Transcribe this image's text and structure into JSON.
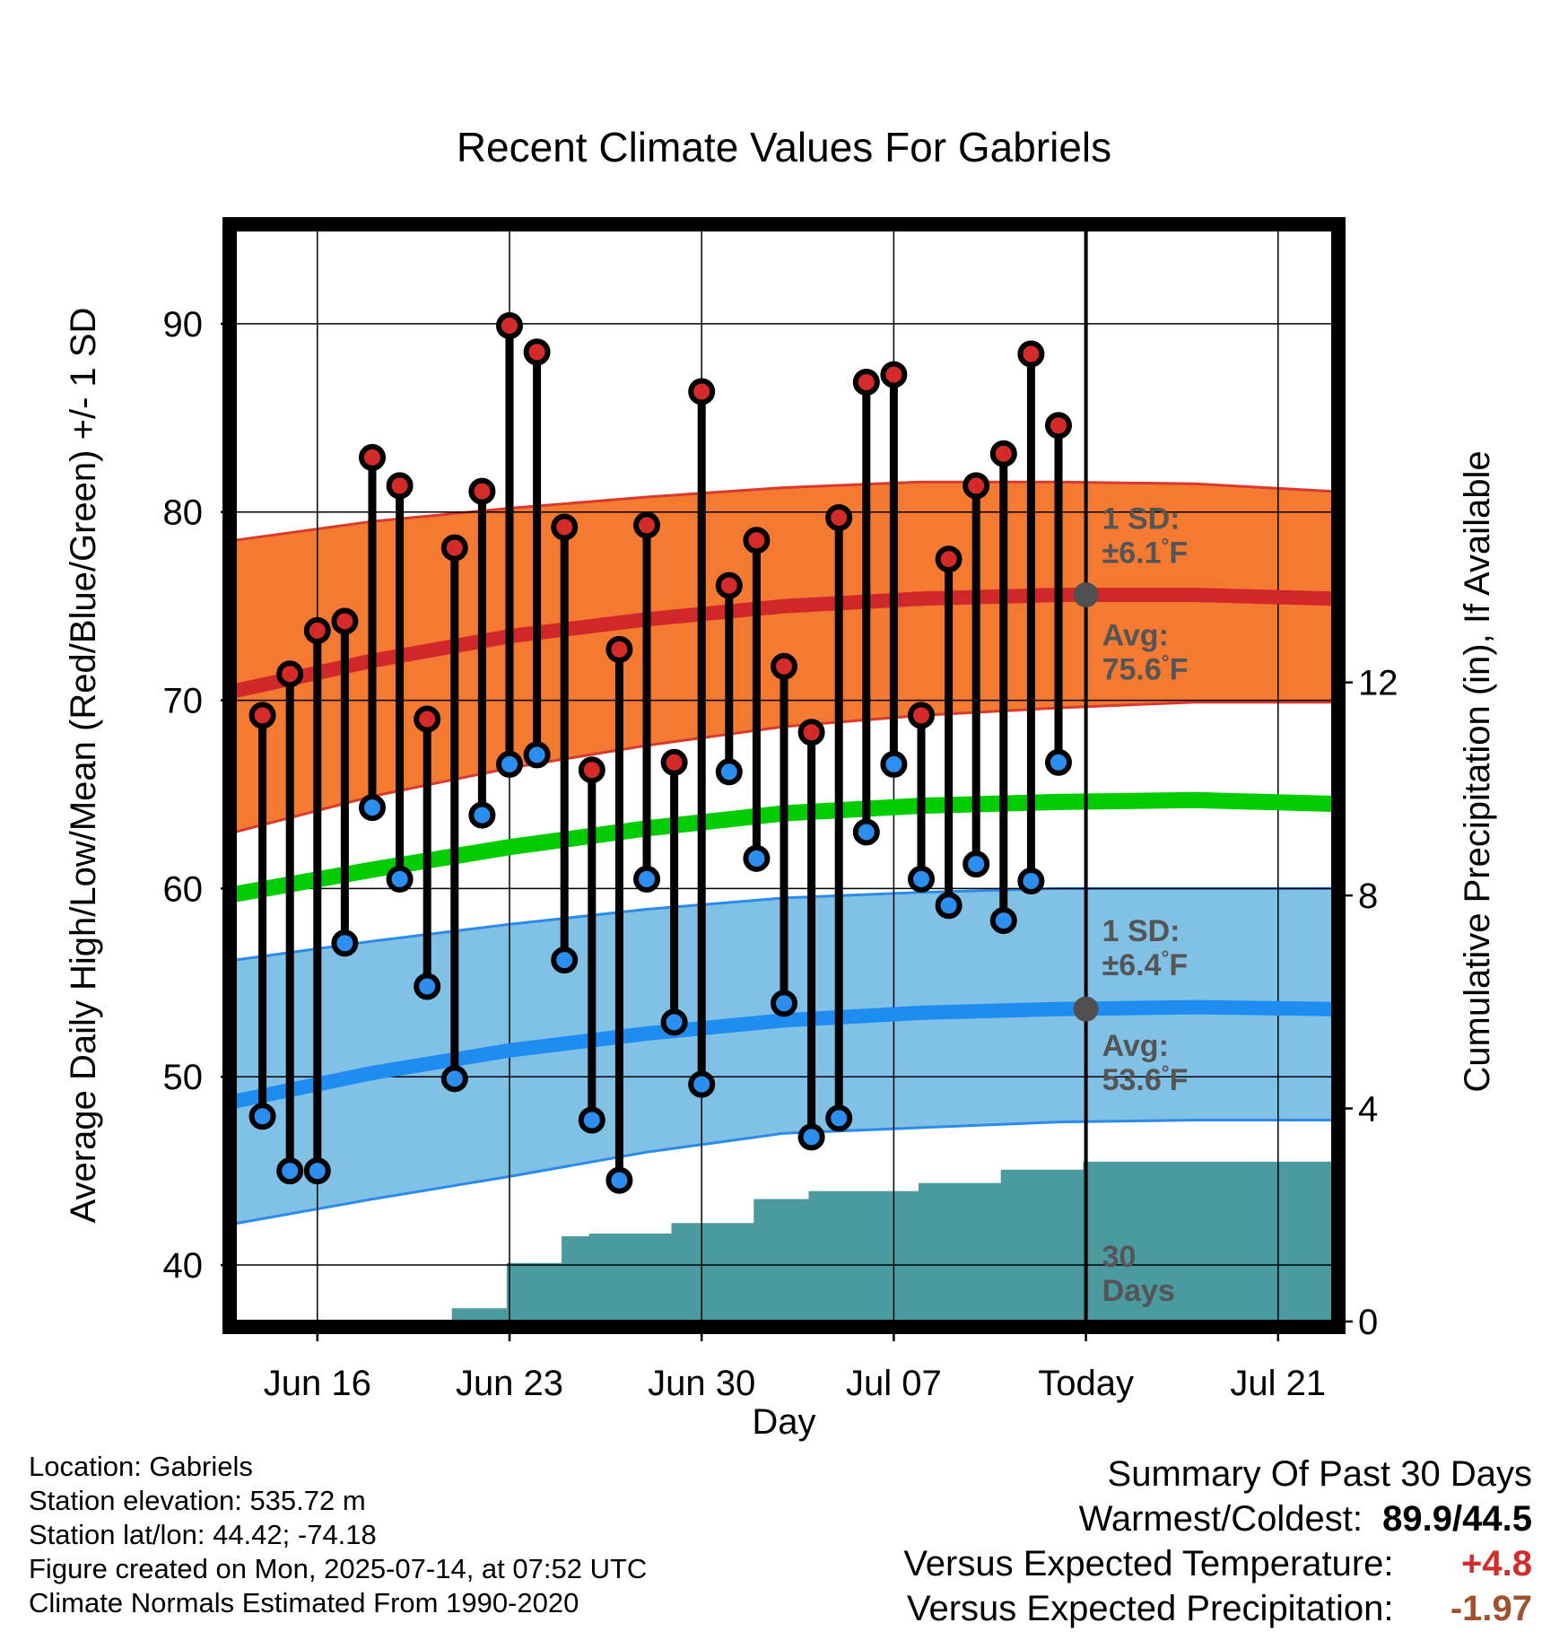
{
  "title": "Recent Climate Values For Gabriels",
  "chart_data": {
    "type": "line",
    "xlabel": "Day",
    "ylabel": "Average Daily High/Low/Mean (Red/Blue/Green) +/- 1 SD",
    "y2label": "Cumulative Precipitation (in), If Available",
    "x_ticks": [
      {
        "day": 3,
        "label": "Jun 16"
      },
      {
        "day": 10,
        "label": "Jun 23"
      },
      {
        "day": 17,
        "label": "Jun 30"
      },
      {
        "day": 24,
        "label": "Jul 07"
      },
      {
        "day": 31,
        "label": "Today"
      },
      {
        "day": 38,
        "label": "Jul 21"
      }
    ],
    "xlim": [
      0,
      40
    ],
    "ylim": [
      37,
      95
    ],
    "y_ticks": [
      40,
      50,
      60,
      70,
      80,
      90
    ],
    "y2lim": [
      0,
      20.5
    ],
    "y2_ticks": [
      0,
      4,
      8,
      12
    ],
    "today_day": 31,
    "days_x": [
      1,
      2,
      3,
      4,
      5,
      6,
      7,
      8,
      9,
      10,
      11,
      12,
      13,
      14,
      15,
      16,
      17,
      18,
      19,
      20,
      21,
      22,
      23,
      24,
      25,
      26,
      27,
      28,
      29,
      30
    ],
    "daily_high": [
      69.2,
      71.4,
      73.7,
      74.2,
      82.9,
      81.4,
      69.0,
      78.1,
      81.1,
      89.9,
      88.5,
      79.2,
      66.3,
      72.7,
      79.3,
      66.7,
      86.4,
      76.1,
      78.5,
      71.8,
      68.3,
      79.7,
      86.9,
      87.3,
      69.2,
      77.5,
      81.4,
      83.1,
      88.4,
      84.6
    ],
    "daily_low": [
      47.9,
      45.0,
      45.0,
      57.1,
      64.3,
      60.5,
      54.8,
      49.9,
      63.9,
      66.6,
      67.1,
      56.2,
      47.7,
      44.5,
      60.5,
      52.9,
      49.6,
      66.2,
      61.6,
      53.9,
      46.8,
      47.8,
      63.0,
      66.6,
      60.5,
      59.1,
      61.3,
      58.3,
      60.4,
      66.7
    ],
    "normal_x": [
      0,
      5,
      10,
      15,
      20,
      25,
      30,
      35,
      40
    ],
    "normal_high": [
      70.5,
      72.1,
      73.4,
      74.3,
      75.0,
      75.4,
      75.6,
      75.6,
      75.4
    ],
    "high_sd_upper": [
      78.5,
      79.5,
      80.2,
      80.8,
      81.3,
      81.6,
      81.6,
      81.5,
      81.1
    ],
    "high_sd_lower": [
      63.0,
      64.9,
      66.4,
      67.6,
      68.6,
      69.2,
      69.6,
      69.9,
      69.9
    ],
    "normal_mean": [
      59.7,
      61.0,
      62.2,
      63.2,
      64.0,
      64.4,
      64.6,
      64.7,
      64.5
    ],
    "normal_low": [
      48.7,
      50.2,
      51.4,
      52.3,
      53.0,
      53.4,
      53.6,
      53.7,
      53.6
    ],
    "low_sd_upper": [
      56.2,
      57.2,
      58.1,
      58.9,
      59.5,
      59.8,
      60.0,
      60.0,
      60.0
    ],
    "low_sd_lower": [
      42.2,
      43.5,
      44.7,
      46.0,
      47.0,
      47.3,
      47.6,
      47.7,
      47.7
    ],
    "precip_x": [
      5.9,
      6.9,
      7.9,
      8.9,
      9.9,
      10.9,
      11.9,
      12.9,
      13.9,
      14.9,
      15.9,
      16.9,
      17.9,
      18.9,
      19.9,
      20.9,
      21.9,
      22.9,
      23.9,
      24.9,
      25.9,
      26.9,
      27.9,
      28.9,
      29.9,
      30.9,
      40
    ],
    "precip_in": [
      0.0,
      0.0,
      0.25,
      0.25,
      1.1,
      1.1,
      1.6,
      1.65,
      1.65,
      1.65,
      1.85,
      1.85,
      1.85,
      2.3,
      2.3,
      2.45,
      2.45,
      2.45,
      2.45,
      2.6,
      2.6,
      2.6,
      2.85,
      2.85,
      2.85,
      3.0,
      3.0
    ],
    "annotations": {
      "high_sd_line1": "1 SD:",
      "high_sd_line2": "±6.1",
      "high_sd_unit": "°F",
      "high_avg_line1": "Avg:",
      "high_avg_line2": "75.6",
      "high_avg_unit": "°F",
      "low_sd_line1": "1 SD:",
      "low_sd_line2": "±6.4",
      "low_sd_unit": "°F",
      "low_avg_line1": "Avg:",
      "low_avg_line2": "53.6",
      "low_avg_unit": "°F",
      "days_line1": "30",
      "days_line2": "Days"
    },
    "colors": {
      "high_band": "#f47a31",
      "high_edge": "#d93a2e",
      "high_line": "#d0282a",
      "mean_line": "#00cc00",
      "low_band": "#82c1e6",
      "low_edge": "#2a8be8",
      "low_line": "#1e8cf0",
      "precip": "#4a9aa0",
      "high_marker": "#d42a2a",
      "low_marker": "#2c8ff0",
      "today_marker": "#505050"
    }
  },
  "footer": {
    "location": "Location: Gabriels",
    "elevation": "Station elevation: 535.72 m",
    "latlon": "Station lat/lon: 44.42; -74.18",
    "created": "Figure created on Mon, 2025-07-14, at 07:52 UTC",
    "normals": "Climate Normals Estimated From 1990-2020"
  },
  "summary": {
    "heading": "Summary Of Past 30 Days",
    "warm_label": "Warmest/Coldest:",
    "warm_value": "89.9/44.5",
    "temp_label": "Versus Expected Temperature:",
    "temp_value": "+4.8",
    "temp_color": "#d22d2d",
    "precip_label": "Versus Expected Precipitation:",
    "precip_value": "-1.97",
    "precip_color": "#a0522d"
  }
}
